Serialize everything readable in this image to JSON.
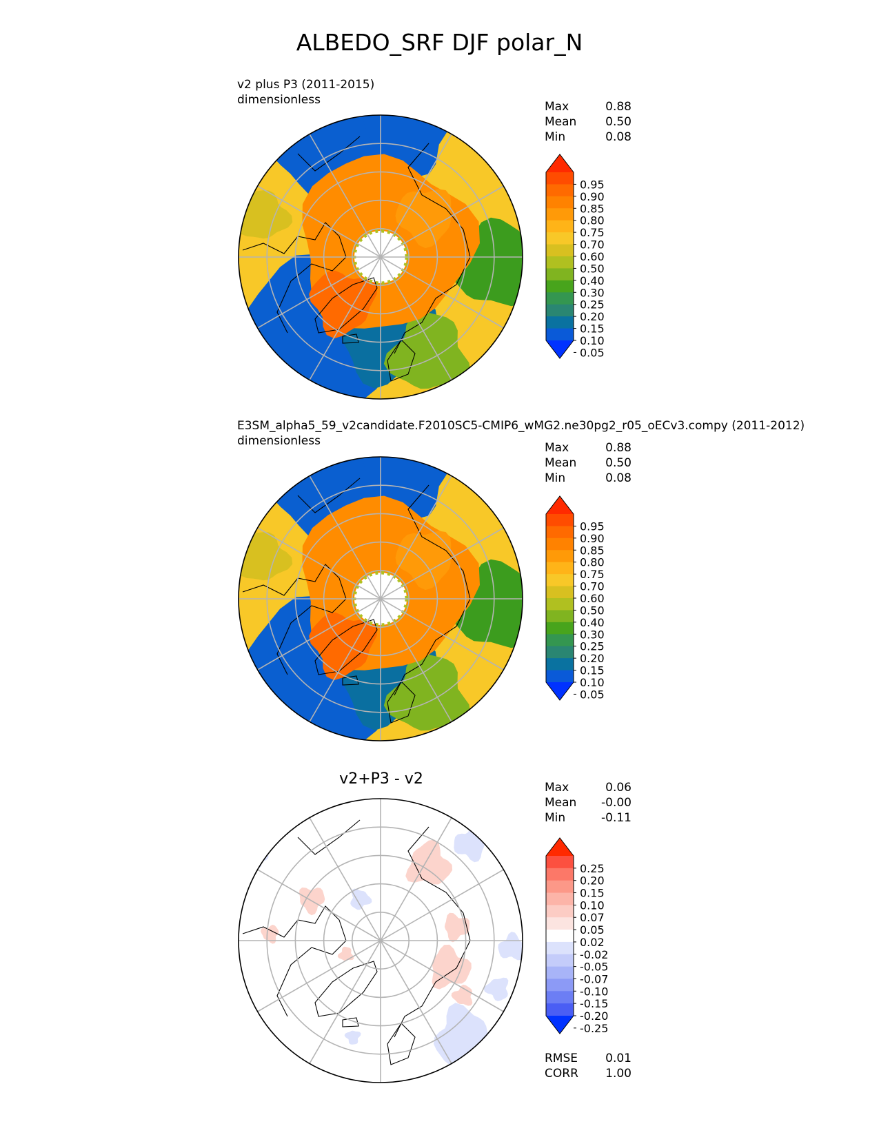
{
  "figure": {
    "title": "ALBEDO_SRF DJF polar_N"
  },
  "colors": {
    "ocean_low": "#0a5fd0",
    "ocean_mid": "#0a6fa0",
    "land_green": "#3c9c1e",
    "land_yellow": "#f0c020",
    "ice_orange": "#ff8c00",
    "high_red": "#ff3000",
    "gridline": "#b4b4b4",
    "coastline": "#000000"
  },
  "panels": [
    {
      "title": "v2 plus P3 (2011-2015)",
      "units": "dimensionless",
      "stats": [
        {
          "label": "Max",
          "value": "0.88"
        },
        {
          "label": "Mean",
          "value": "0.50"
        },
        {
          "label": "Min",
          "value": "0.08"
        }
      ]
    },
    {
      "title": "E3SM_alpha5_59_v2candidate.F2010SC5-CMIP6_wMG2.ne30pg2_r05_oECv3.compy (2011-2012)",
      "units": "dimensionless",
      "stats": [
        {
          "label": "Max",
          "value": "0.88"
        },
        {
          "label": "Mean",
          "value": "0.50"
        },
        {
          "label": "Min",
          "value": "0.08"
        }
      ]
    },
    {
      "title": "v2+P3 - v2",
      "stats": [
        {
          "label": "Max",
          "value": "0.06"
        },
        {
          "label": "Mean",
          "value": "-0.00"
        },
        {
          "label": "Min",
          "value": "-0.11"
        }
      ],
      "metrics": [
        {
          "label": "RMSE",
          "value": "0.01"
        },
        {
          "label": "CORR",
          "value": "1.00"
        }
      ]
    }
  ],
  "chart_data": [
    {
      "type": "heatmap",
      "projection": "polar-north",
      "variable": "ALBEDO_SRF",
      "season": "DJF",
      "colorbar": {
        "levels": [
          "0.95",
          "0.90",
          "0.85",
          "0.80",
          "0.75",
          "0.70",
          "0.60",
          "0.50",
          "0.40",
          "0.30",
          "0.25",
          "0.20",
          "0.15",
          "0.10",
          "0.05"
        ],
        "colors": [
          "#ff2a00",
          "#ff4c00",
          "#ff6a00",
          "#ff8200",
          "#ff9a08",
          "#ffb418",
          "#f8c828",
          "#d8c020",
          "#b0c020",
          "#80b420",
          "#48a41c",
          "#349650",
          "#2a8672",
          "#0a72a0",
          "#0a5ad8",
          "#0032ff"
        ],
        "extend": "both"
      }
    },
    {
      "type": "heatmap",
      "projection": "polar-north",
      "variable": "ALBEDO_SRF",
      "season": "DJF",
      "colorbar": {
        "levels": [
          "0.95",
          "0.90",
          "0.85",
          "0.80",
          "0.75",
          "0.70",
          "0.60",
          "0.50",
          "0.40",
          "0.30",
          "0.25",
          "0.20",
          "0.15",
          "0.10",
          "0.05"
        ],
        "colors": [
          "#ff2a00",
          "#ff4c00",
          "#ff6a00",
          "#ff8200",
          "#ff9a08",
          "#ffb418",
          "#f8c828",
          "#d8c020",
          "#b0c020",
          "#80b420",
          "#48a41c",
          "#349650",
          "#2a8672",
          "#0a72a0",
          "#0a5ad8",
          "#0032ff"
        ],
        "extend": "both"
      }
    },
    {
      "type": "heatmap",
      "projection": "polar-north",
      "variable": "ALBEDO_SRF difference",
      "season": "DJF",
      "colorbar": {
        "levels": [
          "0.25",
          "0.20",
          "0.15",
          "0.10",
          "0.07",
          "0.05",
          "0.02",
          "-0.02",
          "-0.05",
          "-0.07",
          "-0.10",
          "-0.15",
          "-0.20",
          "-0.25"
        ],
        "colors": [
          "#ff2a00",
          "#fc5040",
          "#fc7868",
          "#fc9888",
          "#fcb4a8",
          "#fcccc4",
          "#fce4e0",
          "#ffffff",
          "#dce2fc",
          "#c4ccfa",
          "#a8b4f8",
          "#8c9af6",
          "#6c7ef4",
          "#4a5ef4",
          "#0032ff"
        ],
        "extend": "both"
      }
    }
  ]
}
